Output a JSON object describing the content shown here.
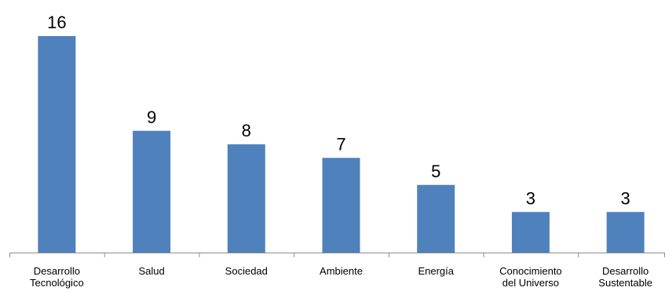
{
  "chart_data": {
    "type": "bar",
    "categories": [
      [
        "Desarrollo",
        "Tecnológico"
      ],
      [
        "Salud"
      ],
      [
        "Sociedad"
      ],
      [
        "Ambiente"
      ],
      [
        "Energía"
      ],
      [
        "Conocimiento",
        "del Universo"
      ],
      [
        "Desarrollo",
        "Sustentable"
      ]
    ],
    "values": [
      16,
      9,
      8,
      7,
      5,
      3,
      3
    ],
    "data_labels": [
      "16",
      "9",
      "8",
      "7",
      "5",
      "3",
      "3"
    ],
    "ylim": [
      0,
      16
    ],
    "bar_color": "#4f81bd",
    "axis_color": "#8c8c8c",
    "grid": false,
    "legend": "none",
    "y_axis_visible": false
  }
}
